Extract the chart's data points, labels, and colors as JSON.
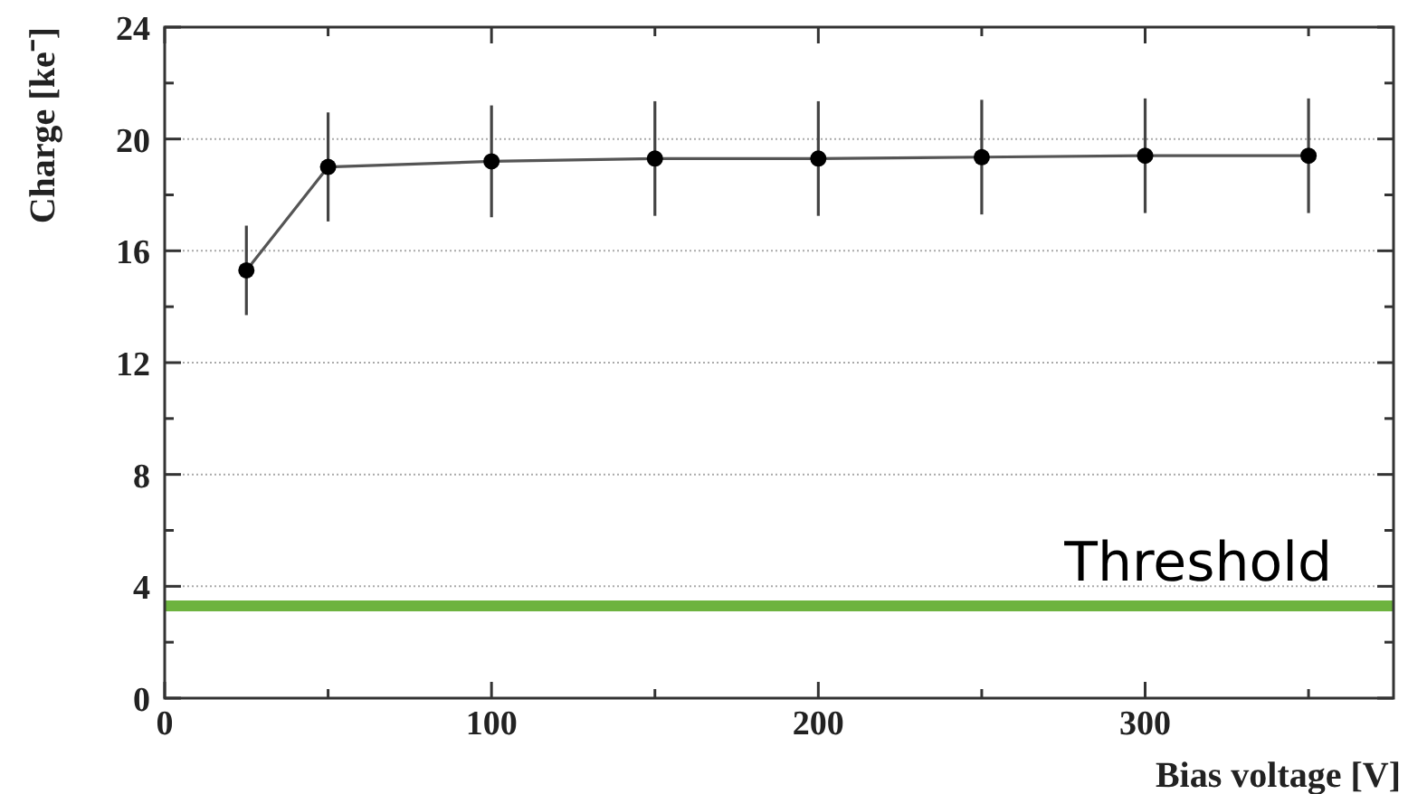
{
  "chart_data": {
    "type": "line",
    "xlabel": "Bias voltage [V]",
    "ylabel": "Charge [ke⁻]",
    "x": [
      25,
      50,
      100,
      150,
      200,
      250,
      300,
      350
    ],
    "series": [
      {
        "color": "#000000",
        "values": [
          15.3,
          19.0,
          19.2,
          19.3,
          19.3,
          19.35,
          19.4,
          19.4
        ],
        "errors": [
          1.6,
          1.95,
          2.0,
          2.05,
          2.05,
          2.05,
          2.05,
          2.05
        ]
      }
    ],
    "xlim": [
      0,
      376
    ],
    "xticks": [
      0,
      {
        "value": 50,
        "label": null
      },
      100,
      {
        "value": 150,
        "label": null
      },
      200,
      {
        "value": 250,
        "label": null
      },
      300,
      {
        "value": 350,
        "label": null
      }
    ],
    "ylim": [
      0,
      24
    ],
    "yticks": [
      0,
      {
        "value": 2,
        "label": null
      },
      4,
      {
        "value": 6,
        "label": null
      },
      8,
      {
        "value": 10,
        "label": null
      },
      12,
      {
        "value": 14,
        "label": null
      },
      16,
      {
        "value": 18,
        "label": null
      },
      20,
      {
        "value": 22,
        "label": null
      },
      24
    ],
    "grid": "y",
    "marker": "circle",
    "line_style": "solid",
    "ref_lines": [
      {
        "axis": "y",
        "value": 3.3,
        "label": "Threshold",
        "color": "#6db33f"
      }
    ]
  }
}
